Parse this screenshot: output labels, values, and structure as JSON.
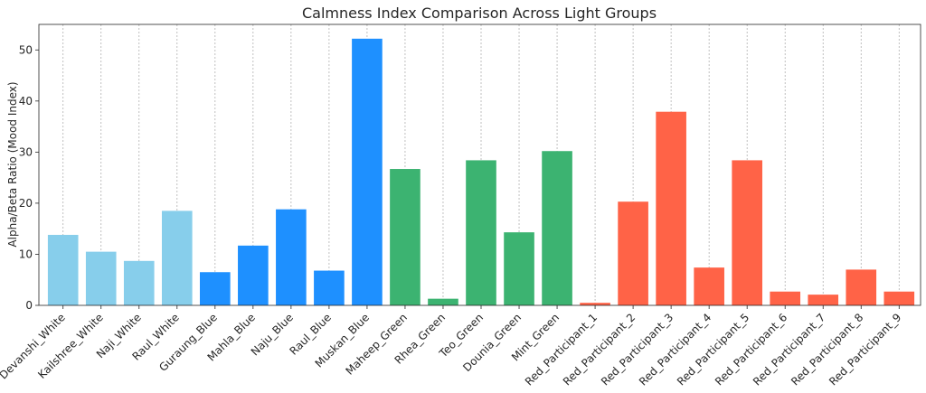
{
  "chart_data": {
    "type": "bar",
    "title": "Calmness Index Comparison Across Light Groups",
    "xlabel": "",
    "ylabel": "Alpha/Beta Ratio (Mood Index)",
    "ylim": [
      0,
      55
    ],
    "yticks": [
      0,
      10,
      20,
      30,
      40,
      50
    ],
    "grid": "vertical",
    "categories": [
      "Devanshi_White",
      "Kailshree_White",
      "Naji_White",
      "Raul_White",
      "Guraung_Blue",
      "Mahla_Blue",
      "Naju_Blue",
      "Raul_Blue",
      "Muskan_Blue",
      "Maheep_Green",
      "Rhea_Green",
      "Teo_Green",
      "Dounia_Green",
      "Mint_Green",
      "Red_Participant_1",
      "Red_Participant_2",
      "Red_Participant_3",
      "Red_Participant_4",
      "Red_Participant_5",
      "Red_Participant_6",
      "Red_Participant_7",
      "Red_Participant_8",
      "Red_Participant_9"
    ],
    "values": [
      13.8,
      10.5,
      8.7,
      18.5,
      6.5,
      11.7,
      18.8,
      6.8,
      52.2,
      26.7,
      1.3,
      28.4,
      14.3,
      30.2,
      0.5,
      20.3,
      37.9,
      7.4,
      28.4,
      2.7,
      2.1,
      7.0,
      2.7
    ],
    "colors": [
      "#87ceeb",
      "#87ceeb",
      "#87ceeb",
      "#87ceeb",
      "#1e90ff",
      "#1e90ff",
      "#1e90ff",
      "#1e90ff",
      "#1e90ff",
      "#3cb371",
      "#3cb371",
      "#3cb371",
      "#3cb371",
      "#3cb371",
      "#ff6347",
      "#ff6347",
      "#ff6347",
      "#ff6347",
      "#ff6347",
      "#ff6347",
      "#ff6347",
      "#ff6347",
      "#ff6347"
    ]
  }
}
